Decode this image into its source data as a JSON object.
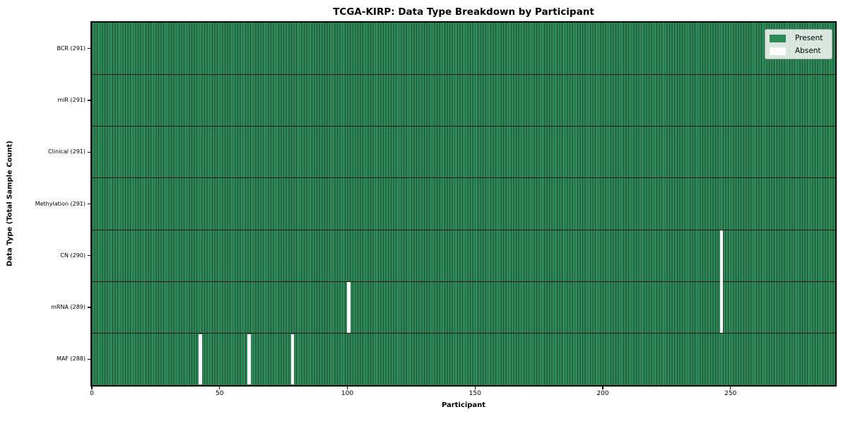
{
  "chart_data": {
    "type": "heatmap",
    "title": "TCGA-KIRP: Data Type Breakdown by Participant",
    "xlabel": "Participant",
    "ylabel": "Data Type (Total Sample Count)",
    "x_ticks": [
      0,
      50,
      100,
      150,
      200,
      250
    ],
    "xlim": [
      0,
      291
    ],
    "n_participants": 291,
    "grid": false,
    "rows": [
      {
        "label": "BCR (291)",
        "data_type": "BCR",
        "present_count": 291,
        "absent_participants": []
      },
      {
        "label": "miR (291)",
        "data_type": "miR",
        "present_count": 291,
        "absent_participants": []
      },
      {
        "label": "Clinical (291)",
        "data_type": "Clinical",
        "present_count": 291,
        "absent_participants": []
      },
      {
        "label": "Methylation (291)",
        "data_type": "Methylation",
        "present_count": 291,
        "absent_participants": []
      },
      {
        "label": "CN (290)",
        "data_type": "CN",
        "present_count": 290,
        "absent_participants": [
          246
        ]
      },
      {
        "label": "mRNA (289)",
        "data_type": "mRNA",
        "present_count": 289,
        "absent_participants": [
          100,
          246
        ]
      },
      {
        "label": "MAF (288)",
        "data_type": "MAF",
        "present_count": 288,
        "absent_participants": [
          42,
          61,
          78
        ]
      }
    ],
    "legend": {
      "position": "upper right",
      "entries": [
        {
          "label": "Present",
          "color": "#2e8b57"
        },
        {
          "label": "Absent",
          "color": "#ffffff"
        }
      ]
    },
    "colors": {
      "present": "#2e8b57",
      "absent": "#ffffff",
      "bar_edge": "#1d4a33",
      "row_divider": "#101810",
      "spine": "#0b0b0b"
    }
  }
}
